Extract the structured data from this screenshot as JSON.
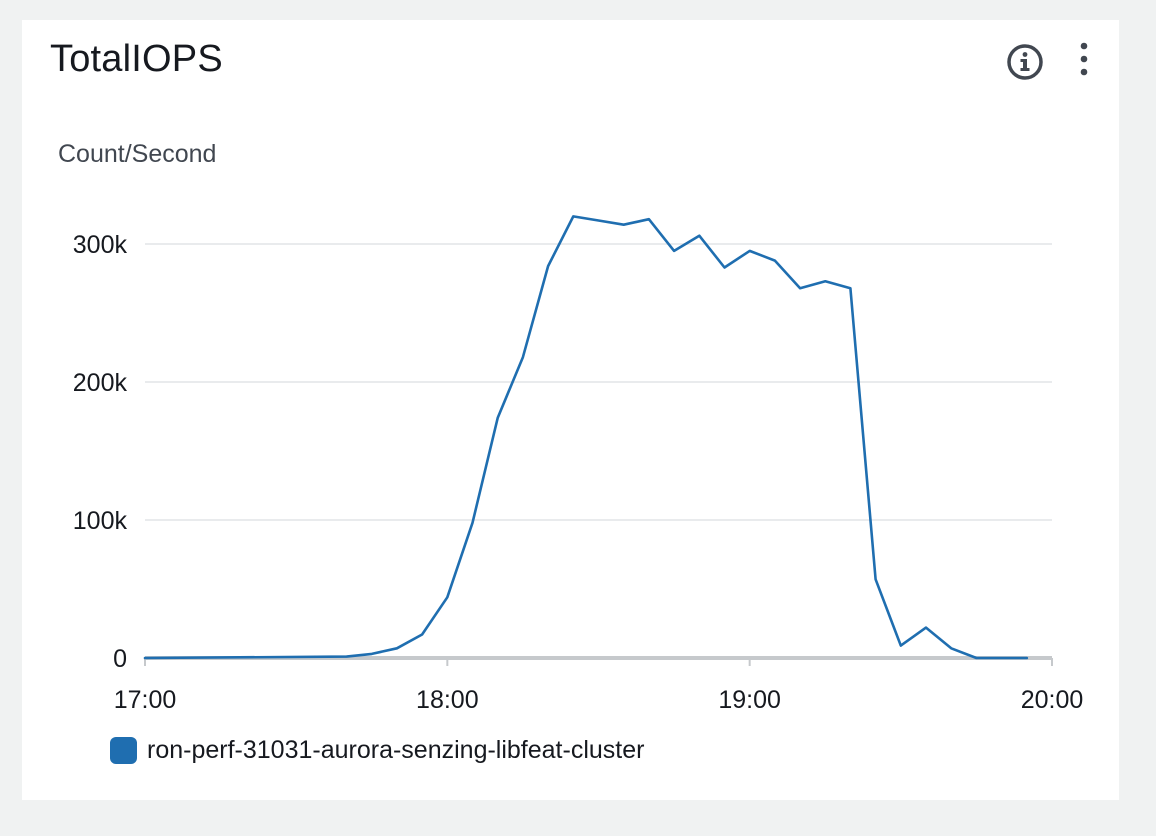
{
  "widget": {
    "title": "TotalIOPS",
    "info_icon": "info-circle-icon",
    "menu_icon": "vertical-ellipsis-icon"
  },
  "chart_data": {
    "type": "line",
    "title": "TotalIOPS",
    "ylabel": "Count/Second",
    "xlabel": "",
    "xlim": [
      "17:00",
      "20:00"
    ],
    "x_ticks": [
      "17:00",
      "18:00",
      "19:00",
      "20:00"
    ],
    "ylim": [
      0,
      330000
    ],
    "y_ticks": [
      0,
      100000,
      200000,
      300000
    ],
    "y_tick_labels": [
      "0",
      "100k",
      "200k",
      "300k"
    ],
    "grid": "horizontal",
    "legend_position": "bottom-left",
    "color": "#1f6eb0",
    "series": [
      {
        "name": "ron-perf-31031-aurora-senzing-libfeat-cluster",
        "points": [
          {
            "x": "17:00",
            "y": 0
          },
          {
            "x": "17:40",
            "y": 1000
          },
          {
            "x": "17:45",
            "y": 3000
          },
          {
            "x": "17:50",
            "y": 7000
          },
          {
            "x": "17:55",
            "y": 17000
          },
          {
            "x": "18:00",
            "y": 44000
          },
          {
            "x": "18:05",
            "y": 98000
          },
          {
            "x": "18:10",
            "y": 174000
          },
          {
            "x": "18:15",
            "y": 218000
          },
          {
            "x": "18:20",
            "y": 284000
          },
          {
            "x": "18:25",
            "y": 320000
          },
          {
            "x": "18:30",
            "y": 317000
          },
          {
            "x": "18:35",
            "y": 314000
          },
          {
            "x": "18:40",
            "y": 318000
          },
          {
            "x": "18:45",
            "y": 295000
          },
          {
            "x": "18:50",
            "y": 306000
          },
          {
            "x": "18:55",
            "y": 283000
          },
          {
            "x": "19:00",
            "y": 295000
          },
          {
            "x": "19:05",
            "y": 288000
          },
          {
            "x": "19:10",
            "y": 268000
          },
          {
            "x": "19:15",
            "y": 273000
          },
          {
            "x": "19:20",
            "y": 268000
          },
          {
            "x": "19:25",
            "y": 57000
          },
          {
            "x": "19:30",
            "y": 9000
          },
          {
            "x": "19:35",
            "y": 22000
          },
          {
            "x": "19:40",
            "y": 7000
          },
          {
            "x": "19:45",
            "y": 0
          },
          {
            "x": "19:50",
            "y": 0
          },
          {
            "x": "19:55",
            "y": 0
          }
        ]
      }
    ]
  }
}
